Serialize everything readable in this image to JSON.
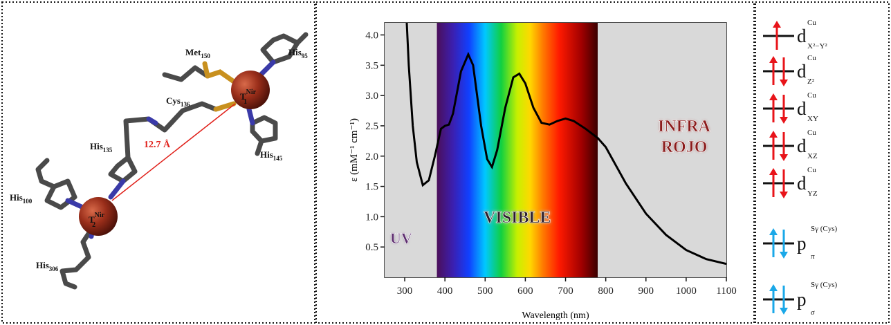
{
  "chart_data": {
    "type": "line",
    "x_label": "Wavelength (nm)",
    "y_label": "ε (mM⁻¹ cm⁻¹)",
    "xlim": [
      250,
      1100
    ],
    "ylim": [
      0,
      4.2
    ],
    "xticks": [
      300,
      400,
      500,
      600,
      700,
      800,
      900,
      1000,
      1100
    ],
    "yticks": [
      0.5,
      {
        "value": 1,
        "label": "1.0"
      },
      1.5,
      {
        "value": 2,
        "label": "2.0"
      },
      2.5,
      {
        "value": 3,
        "label": "3.0"
      },
      3.5,
      {
        "value": 4,
        "label": "4.0"
      }
    ],
    "regions": [
      {
        "label": [
          "UV"
        ],
        "range": [
          250,
          380
        ],
        "color": "#d9d9d9",
        "text_color": "#5b2a6e"
      },
      {
        "label": [
          "VISIBLE"
        ],
        "range": [
          380,
          780
        ],
        "text_color": "#2a1a2a"
      },
      {
        "label": [
          "INFRA",
          "ROJO"
        ],
        "range": [
          780,
          1100
        ],
        "color": "#d9d9d9",
        "text_color": "#8b1a1a"
      }
    ],
    "x": [
      305,
      310,
      320,
      330,
      345,
      360,
      375,
      390,
      400,
      410,
      420,
      440,
      458,
      470,
      490,
      505,
      517,
      530,
      550,
      570,
      585,
      600,
      620,
      640,
      660,
      680,
      700,
      720,
      750,
      780,
      800,
      850,
      900,
      950,
      1000,
      1050,
      1100
    ],
    "series": [
      {
        "color": "#000000",
        "values": [
          4.2,
          3.5,
          2.5,
          1.9,
          1.52,
          1.6,
          2.0,
          2.45,
          2.5,
          2.52,
          2.7,
          3.4,
          3.68,
          3.5,
          2.5,
          1.95,
          1.82,
          2.1,
          2.8,
          3.3,
          3.36,
          3.2,
          2.8,
          2.55,
          2.52,
          2.58,
          2.62,
          2.58,
          2.45,
          2.3,
          2.15,
          1.55,
          1.05,
          0.7,
          0.45,
          0.3,
          0.22
        ]
      }
    ]
  },
  "structure": {
    "distance": "12.7 Å",
    "labels": [
      {
        "base": "Met",
        "sub": "150"
      },
      {
        "base": "His",
        "sub": "95"
      },
      {
        "base": "Cys",
        "sub": "136"
      },
      {
        "base": "T",
        "sub": "1",
        "sup": "Nir"
      },
      {
        "base": "His",
        "sub": "145"
      },
      {
        "base": "His",
        "sub": "135"
      },
      {
        "base": "His",
        "sub": "100"
      },
      {
        "base": "T",
        "sub": "2",
        "sup": "Nir"
      },
      {
        "base": "His",
        "sub": "306"
      }
    ]
  },
  "orbitals": [
    {
      "base": "d",
      "sup": "Cu",
      "sub": "X²−Y²",
      "electrons": 1,
      "color": "#e8141a"
    },
    {
      "base": "d",
      "sup": "Cu",
      "sub": "Z²",
      "electrons": 2,
      "color": "#e8141a"
    },
    {
      "base": "d",
      "sup": "Cu",
      "sub": "XY",
      "electrons": 2,
      "color": "#e8141a"
    },
    {
      "base": "d",
      "sup": "Cu",
      "sub": "XZ",
      "electrons": 2,
      "color": "#e8141a"
    },
    {
      "base": "d",
      "sup": "Cu",
      "sub": "YZ",
      "electrons": 2,
      "color": "#e8141a"
    },
    {
      "base": "p",
      "sup": "Sγ (Cys)",
      "sub": "π",
      "electrons": 2,
      "color": "#1aa8e8"
    },
    {
      "base": "p",
      "sup": "Sγ (Cys)",
      "sub": "σ",
      "electrons": 2,
      "color": "#1aa8e8"
    }
  ]
}
